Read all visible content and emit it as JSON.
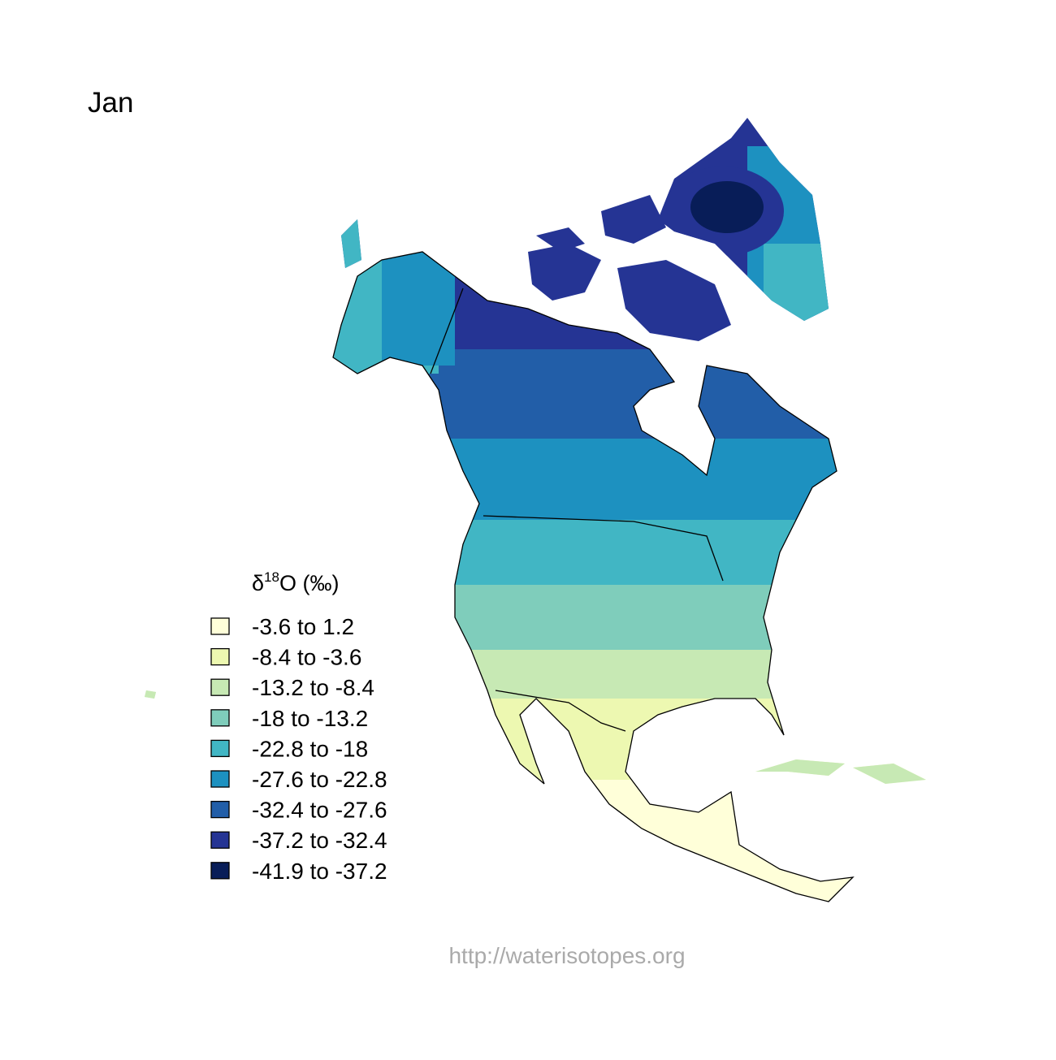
{
  "title": "Jan",
  "legend": {
    "title": {
      "symbol": "δ",
      "superscript": "18",
      "text": "O (‰)"
    },
    "items": [
      {
        "label": "-3.6 to 1.2",
        "color": "#ffffd9"
      },
      {
        "label": "-8.4 to -3.6",
        "color": "#edf8b1"
      },
      {
        "label": "-13.2 to -8.4",
        "color": "#c7e9b4"
      },
      {
        "label": "-18 to -13.2",
        "color": "#7fcdbb"
      },
      {
        "label": "-22.8 to -18",
        "color": "#41b6c4"
      },
      {
        "label": "-27.6 to -22.8",
        "color": "#1d91c0"
      },
      {
        "label": "-32.4 to -27.6",
        "color": "#225ea8"
      },
      {
        "label": "-37.2 to -32.4",
        "color": "#253494"
      },
      {
        "label": "-41.9 to -37.2",
        "color": "#081d58"
      }
    ]
  },
  "footer": "http://waterisotopes.org"
}
